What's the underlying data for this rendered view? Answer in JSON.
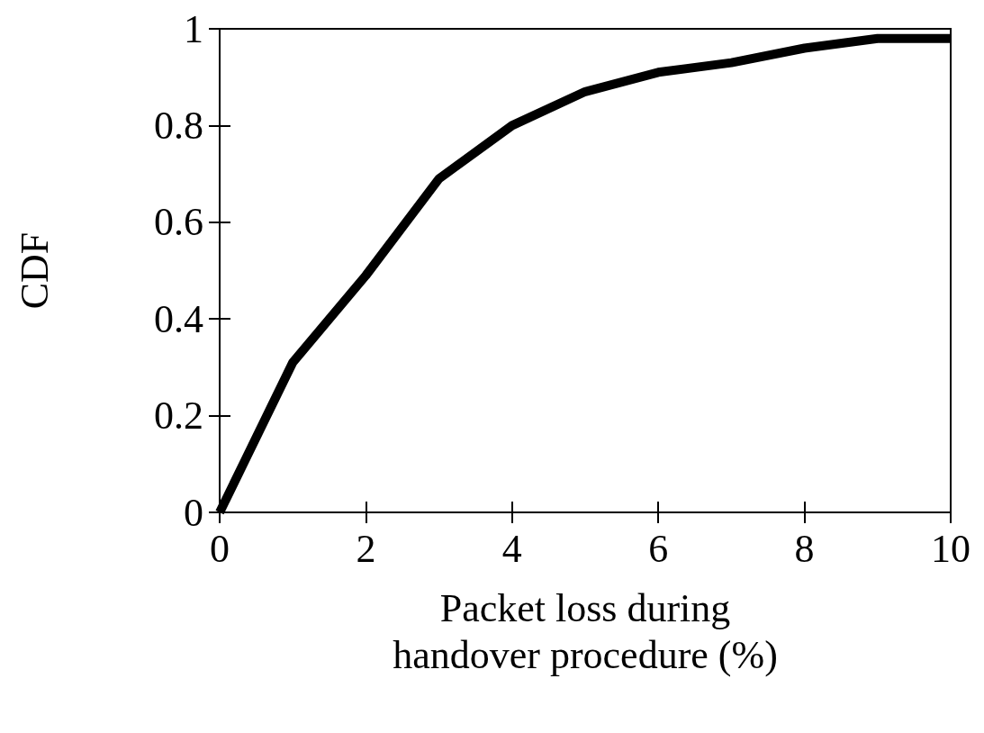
{
  "chart_data": {
    "type": "line",
    "xlabel": "Packet loss during\nhandover procedure (%)",
    "ylabel": "CDF",
    "x": [
      0,
      1,
      2,
      3,
      4,
      5,
      6,
      7,
      8,
      9,
      10
    ],
    "series": [
      {
        "color": "#000000",
        "values": [
          0,
          0.31,
          0.49,
          0.69,
          0.8,
          0.87,
          0.91,
          0.93,
          0.96,
          0.98,
          0.98
        ]
      }
    ],
    "xlim": [
      0,
      10
    ],
    "xticks": [
      0,
      2,
      4,
      6,
      8,
      10
    ],
    "ylim": [
      0,
      1
    ],
    "yticks": [
      0,
      0.2,
      0.4,
      0.6,
      0.8,
      1
    ],
    "grid": false,
    "marker": "none",
    "line_style": "solid"
  }
}
